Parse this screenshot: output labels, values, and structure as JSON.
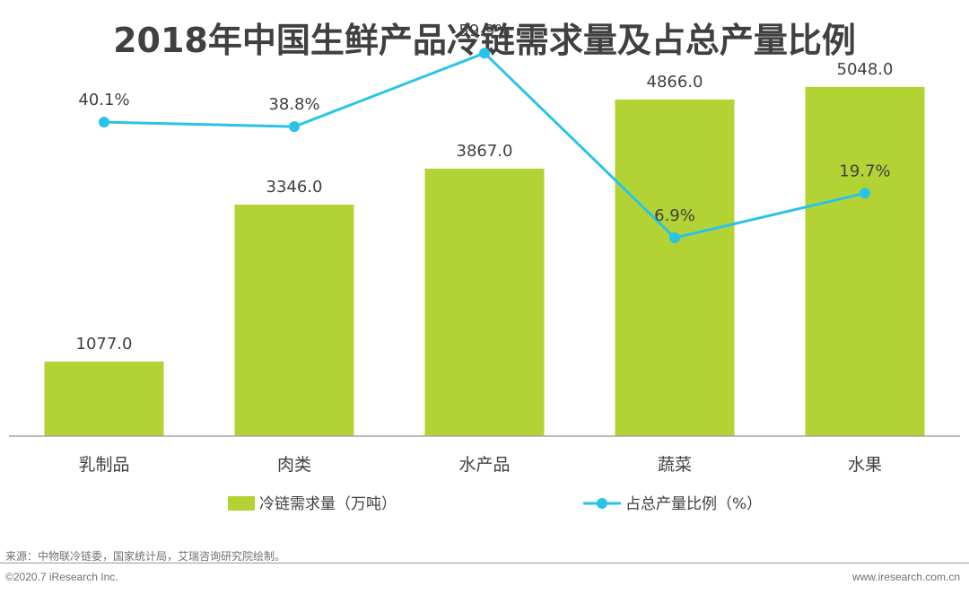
{
  "chart_data": {
    "type": "bar+line",
    "title": "2018年中国生鲜产品冷链需求量及占总产量比例",
    "categories": [
      "乳制品",
      "肉类",
      "水产品",
      "蔬菜",
      "水果"
    ],
    "series": [
      {
        "name": "冷链需求量（万吨）",
        "type": "bar",
        "values": [
          1077.0,
          3346.0,
          3867.0,
          4866.0,
          5048.0
        ],
        "labels": [
          "1077.0",
          "3346.0",
          "3867.0",
          "4866.0",
          "5048.0"
        ],
        "color": "#b3d335",
        "ylim": [
          0,
          5500
        ]
      },
      {
        "name": "占总产量比例（%）",
        "type": "line",
        "values": [
          40.1,
          38.8,
          59.9,
          6.9,
          19.7
        ],
        "labels": [
          "40.1%",
          "38.8%",
          "59.9%",
          "6.9%",
          "19.7%"
        ],
        "color": "#29c3ea",
        "ylim": [
          -50,
          70
        ]
      }
    ],
    "legend": [
      "冷链需求量（万吨）",
      "占总产量比例（%）"
    ],
    "legend_position": "bottom"
  },
  "footer": {
    "source": "来源：中物联冷链委，国家统计局，艾瑞咨询研究院绘制。",
    "copyright": "©2020.7 iResearch Inc.",
    "website": "www.iresearch.com.cn"
  }
}
